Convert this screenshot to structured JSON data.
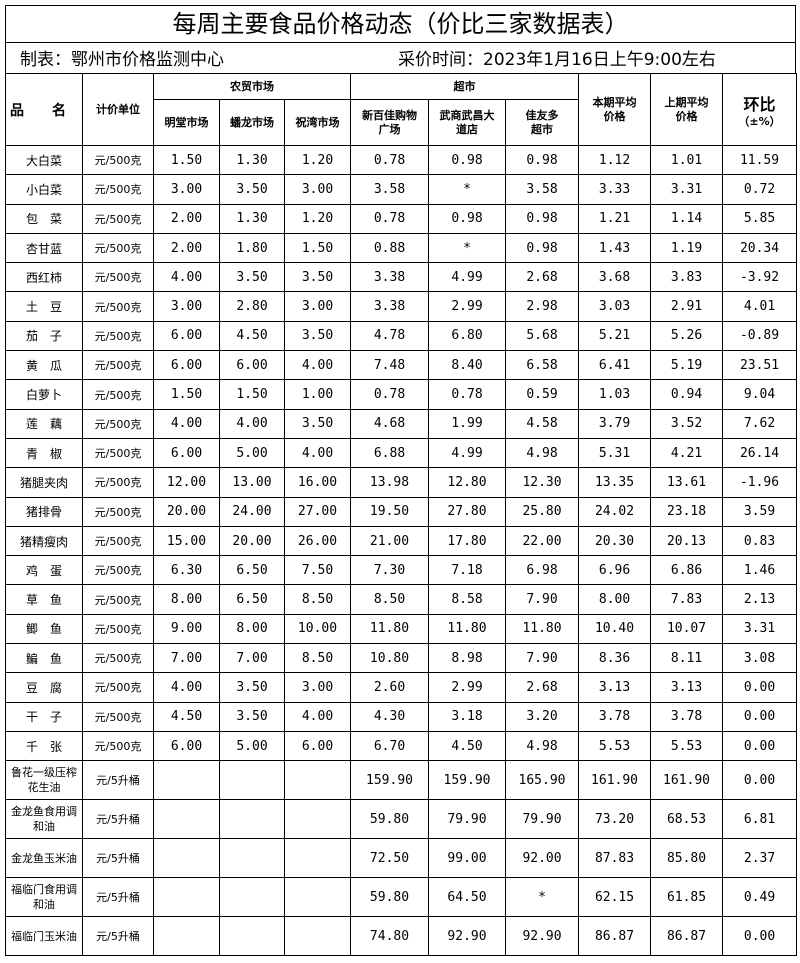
{
  "title": "每周主要食品价格动态（价比三家数据表）",
  "maker": "制表：鄂州市价格监测中心",
  "time": "采价时间：2023年1月16日上午9:00左右",
  "headers": {
    "name": "品　　名",
    "unit": "计价单位",
    "farm": "农贸市场",
    "super": "超市",
    "m1": "明堂市场",
    "m2": "蟠龙市场",
    "m3": "祝湾市场",
    "s1": "新百佳购物广场",
    "s2": "武商武昌大道店",
    "s3": "佳友多超市",
    "cur": "本期平均价格",
    "prev": "上期平均价格",
    "ratio": "环比",
    "ratio2": "（±%）"
  },
  "rows": [
    [
      "大白菜",
      "元/500克",
      "1.50",
      "1.30",
      "1.20",
      "0.78",
      "0.98",
      "0.98",
      "1.12",
      "1.01",
      "11.59"
    ],
    [
      "小白菜",
      "元/500克",
      "3.00",
      "3.50",
      "3.00",
      "3.58",
      "*",
      "3.58",
      "3.33",
      "3.31",
      "0.72"
    ],
    [
      "包　菜",
      "元/500克",
      "2.00",
      "1.30",
      "1.20",
      "0.78",
      "0.98",
      "0.98",
      "1.21",
      "1.14",
      "5.85"
    ],
    [
      "杏甘蓝",
      "元/500克",
      "2.00",
      "1.80",
      "1.50",
      "0.88",
      "*",
      "0.98",
      "1.43",
      "1.19",
      "20.34"
    ],
    [
      "西红柿",
      "元/500克",
      "4.00",
      "3.50",
      "3.50",
      "3.38",
      "4.99",
      "2.68",
      "3.68",
      "3.83",
      "-3.92"
    ],
    [
      "土　豆",
      "元/500克",
      "3.00",
      "2.80",
      "3.00",
      "3.38",
      "2.99",
      "2.98",
      "3.03",
      "2.91",
      "4.01"
    ],
    [
      "茄　子",
      "元/500克",
      "6.00",
      "4.50",
      "3.50",
      "4.78",
      "6.80",
      "5.68",
      "5.21",
      "5.26",
      "-0.89"
    ],
    [
      "黄　瓜",
      "元/500克",
      "6.00",
      "6.00",
      "4.00",
      "7.48",
      "8.40",
      "6.58",
      "6.41",
      "5.19",
      "23.51"
    ],
    [
      "白萝卜",
      "元/500克",
      "1.50",
      "1.50",
      "1.00",
      "0.78",
      "0.78",
      "0.59",
      "1.03",
      "0.94",
      "9.04"
    ],
    [
      "莲　藕",
      "元/500克",
      "4.00",
      "4.00",
      "3.50",
      "4.68",
      "1.99",
      "4.58",
      "3.79",
      "3.52",
      "7.62"
    ],
    [
      "青　椒",
      "元/500克",
      "6.00",
      "5.00",
      "4.00",
      "6.88",
      "4.99",
      "4.98",
      "5.31",
      "4.21",
      "26.14"
    ],
    [
      "猪腿夹肉",
      "元/500克",
      "12.00",
      "13.00",
      "16.00",
      "13.98",
      "12.80",
      "12.30",
      "13.35",
      "13.61",
      "-1.96"
    ],
    [
      "猪排骨",
      "元/500克",
      "20.00",
      "24.00",
      "27.00",
      "19.50",
      "27.80",
      "25.80",
      "24.02",
      "23.18",
      "3.59"
    ],
    [
      "猪精瘦肉",
      "元/500克",
      "15.00",
      "20.00",
      "26.00",
      "21.00",
      "17.80",
      "22.00",
      "20.30",
      "20.13",
      "0.83"
    ],
    [
      "鸡　蛋",
      "元/500克",
      "6.30",
      "6.50",
      "7.50",
      "7.30",
      "7.18",
      "6.98",
      "6.96",
      "6.86",
      "1.46"
    ],
    [
      "草　鱼",
      "元/500克",
      "8.00",
      "6.50",
      "8.50",
      "8.50",
      "8.58",
      "7.90",
      "8.00",
      "7.83",
      "2.13"
    ],
    [
      "鲫　鱼",
      "元/500克",
      "9.00",
      "8.00",
      "10.00",
      "11.80",
      "11.80",
      "11.80",
      "10.40",
      "10.07",
      "3.31"
    ],
    [
      "鳊　鱼",
      "元/500克",
      "7.00",
      "7.00",
      "8.50",
      "10.80",
      "8.98",
      "7.90",
      "8.36",
      "8.11",
      "3.08"
    ],
    [
      "豆　腐",
      "元/500克",
      "4.00",
      "3.50",
      "3.00",
      "2.60",
      "2.99",
      "2.68",
      "3.13",
      "3.13",
      "0.00"
    ],
    [
      "干　子",
      "元/500克",
      "4.50",
      "3.50",
      "4.00",
      "4.30",
      "3.18",
      "3.20",
      "3.78",
      "3.78",
      "0.00"
    ],
    [
      "千　张",
      "元/500克",
      "6.00",
      "5.00",
      "6.00",
      "6.70",
      "4.50",
      "4.98",
      "5.53",
      "5.53",
      "0.00"
    ]
  ],
  "oil_rows": [
    [
      "鲁花一级压榨花生油",
      "元/5升桶",
      "",
      "",
      "",
      "159.90",
      "159.90",
      "165.90",
      "161.90",
      "161.90",
      "0.00"
    ],
    [
      "金龙鱼食用调和油",
      "元/5升桶",
      "",
      "",
      "",
      "59.80",
      "79.90",
      "79.90",
      "73.20",
      "68.53",
      "6.81"
    ],
    [
      "金龙鱼玉米油",
      "元/5升桶",
      "",
      "",
      "",
      "72.50",
      "99.00",
      "92.00",
      "87.83",
      "85.80",
      "2.37"
    ],
    [
      "福临门食用调和油",
      "元/5升桶",
      "",
      "",
      "",
      "59.80",
      "64.50",
      "*",
      "62.15",
      "61.85",
      "0.49"
    ],
    [
      "福临门玉米油",
      "元/5升桶",
      "",
      "",
      "",
      "74.80",
      "92.90",
      "92.90",
      "86.87",
      "86.87",
      "0.00"
    ]
  ]
}
